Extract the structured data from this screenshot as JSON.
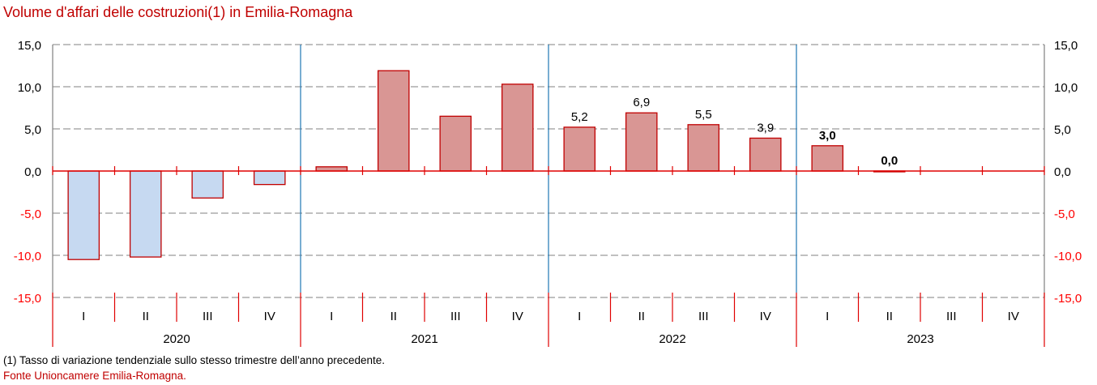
{
  "chart_data": {
    "type": "bar",
    "title": "Volume d'affari delle costruzioni(1) in Emilia-Romagna",
    "xlabel": "",
    "ylabel": "",
    "ylim": [
      -15,
      15
    ],
    "yticks": [
      15,
      10,
      5,
      0,
      -5,
      -10,
      -15
    ],
    "ytick_labels": [
      "15,0",
      "10,0",
      "5,0",
      "0,0",
      "-5,0",
      "-10,0",
      "-15,0"
    ],
    "grid": true,
    "legend": "none",
    "years": [
      "2020",
      "2021",
      "2022",
      "2023"
    ],
    "quarters": [
      "I",
      "II",
      "III",
      "IV"
    ],
    "categories": [
      "2020 I",
      "2020 II",
      "2020 III",
      "2020 IV",
      "2021 I",
      "2021 II",
      "2021 III",
      "2021 IV",
      "2022 I",
      "2022 II",
      "2022 III",
      "2022 IV",
      "2023 I",
      "2023 II",
      "2023 III",
      "2023 IV"
    ],
    "values": [
      -10.5,
      -10.2,
      -3.2,
      -1.6,
      0.5,
      11.9,
      6.5,
      10.3,
      5.2,
      6.9,
      5.5,
      3.9,
      3.0,
      0.0,
      null,
      null
    ],
    "data_labels": [
      null,
      null,
      null,
      null,
      null,
      null,
      null,
      null,
      "5,2",
      "6,9",
      "5,5",
      "3,9",
      "3,0",
      "0,0",
      null,
      null
    ],
    "data_labels_bold": [
      false,
      false,
      false,
      false,
      false,
      false,
      false,
      false,
      false,
      false,
      false,
      false,
      true,
      true,
      false,
      false
    ],
    "colors": {
      "positive_fill": "#d99694",
      "negative_fill": "#c6d9f1",
      "bar_border": "#c00000",
      "zero_line": "#e00000",
      "grid": "#808080",
      "year_divider": "#1f77b4",
      "negative_tick_label": "#ff0000",
      "positive_tick_label": "#000000"
    }
  },
  "footnote": "(1) Tasso di variazione tendenziale sullo stesso trimestre dell’anno precedente.",
  "source": "Fonte Unioncamere Emilia-Romagna."
}
